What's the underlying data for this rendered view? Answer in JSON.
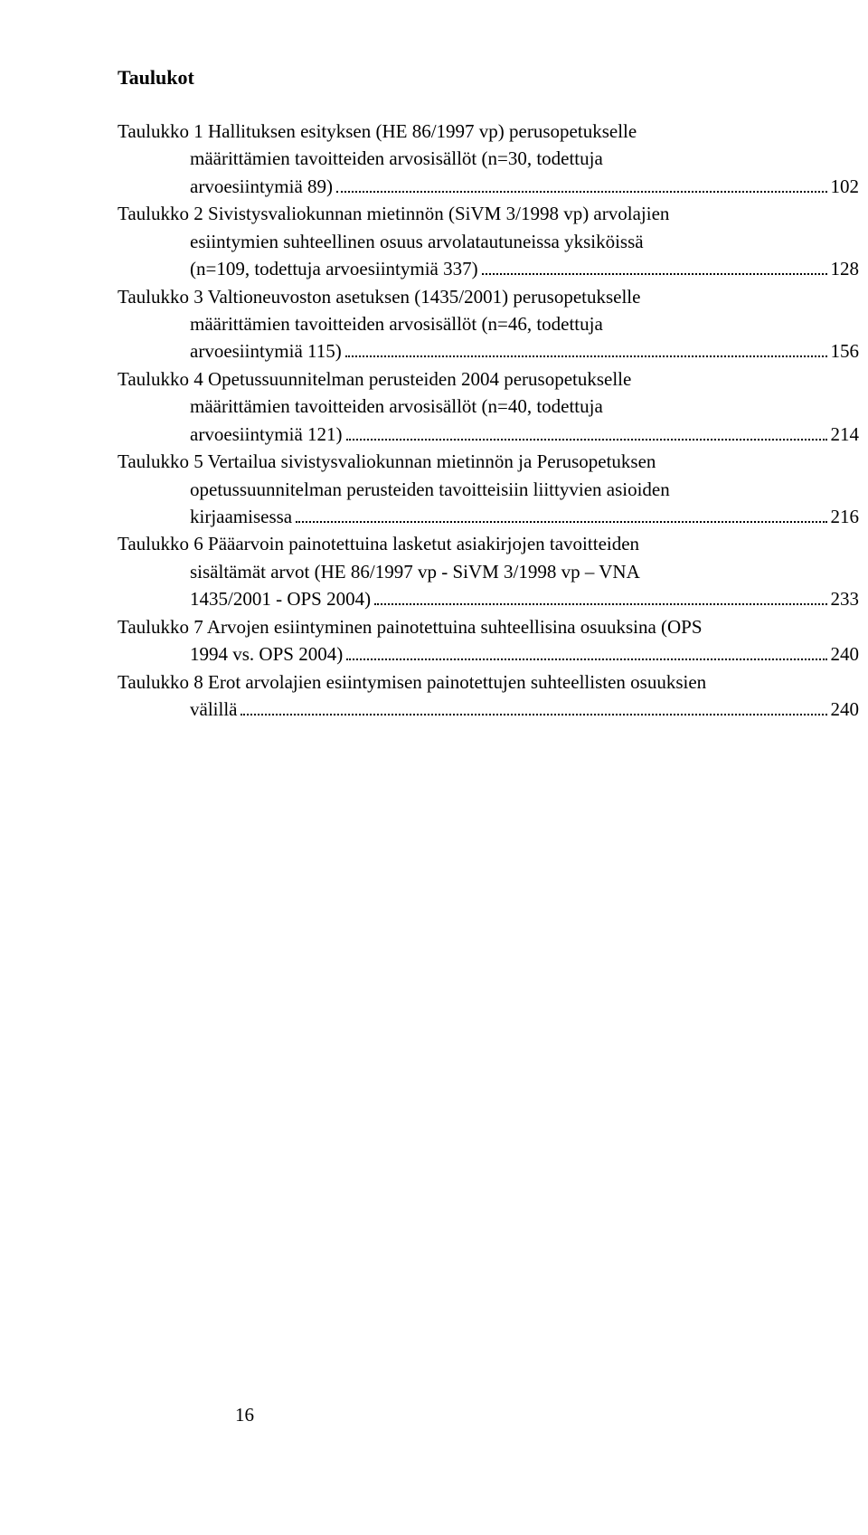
{
  "heading": "Taulukot",
  "footer_page_number": "16",
  "entries": [
    {
      "first": "Taulukko 1 Hallituksen esityksen (HE 86/1997 vp) perusopetukselle",
      "mid": [
        "määrittämien tavoitteiden arvosisällöt (n=30, todettuja"
      ],
      "last_left": "arvoesiintymiä 89)",
      "page": "102"
    },
    {
      "first": "Taulukko 2 Sivistysvaliokunnan mietinnön (SiVM 3/1998 vp) arvolajien",
      "mid": [
        "esiintymien suhteellinen osuus arvolatautuneissa yksiköissä"
      ],
      "last_left": "(n=109, todettuja arvoesiintymiä 337)",
      "page": "128"
    },
    {
      "first": "Taulukko 3 Valtioneuvoston asetuksen (1435/2001) perusopetukselle",
      "mid": [
        "määrittämien tavoitteiden arvosisällöt (n=46, todettuja"
      ],
      "last_left": "arvoesiintymiä 115)",
      "page": "156"
    },
    {
      "first": "Taulukko 4 Opetussuunnitelman perusteiden 2004 perusopetukselle",
      "mid": [
        "määrittämien tavoitteiden arvosisällöt (n=40, todettuja"
      ],
      "last_left": "arvoesiintymiä 121)",
      "page": "214"
    },
    {
      "first": "Taulukko 5 Vertailua sivistysvaliokunnan mietinnön ja Perusopetuksen",
      "mid": [
        "opetussuunnitelman perusteiden tavoitteisiin liittyvien asioiden"
      ],
      "last_left": "kirjaamisessa",
      "page": "216"
    },
    {
      "first": "Taulukko 6 Pääarvoin painotettuina lasketut asiakirjojen tavoitteiden",
      "mid": [
        "sisältämät arvot (HE 86/1997 vp - SiVM 3/1998 vp – VNA"
      ],
      "last_left": "1435/2001 - OPS 2004)",
      "page": "233"
    },
    {
      "first": "Taulukko 7 Arvojen esiintyminen painotettuina suhteellisina osuuksina (OPS",
      "mid": [],
      "last_left": "1994 vs. OPS 2004)",
      "page": "240"
    },
    {
      "first": "Taulukko 8 Erot arvolajien esiintymisen painotettujen suhteellisten osuuksien",
      "mid": [],
      "last_left": "välillä",
      "page": "240"
    }
  ]
}
